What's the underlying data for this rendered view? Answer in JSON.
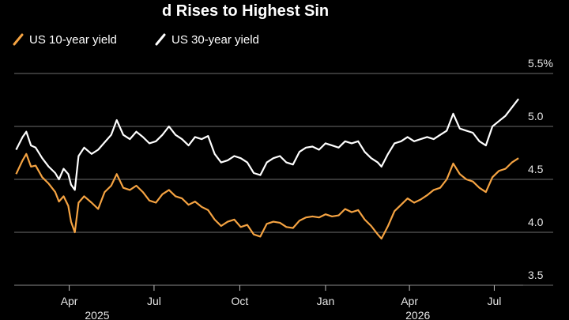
{
  "chart_data": {
    "type": "line",
    "title": "d Rises to Highest Sin",
    "ylim": [
      3.5,
      5.5
    ],
    "y_ticks": [
      "5.5%",
      "5.0",
      "4.5",
      "4.0",
      "3.5"
    ],
    "y_tick_values": [
      5.5,
      5.0,
      4.5,
      4.0,
      3.5
    ],
    "x_range": [
      "2025-02-01",
      "2026-08-01"
    ],
    "x_ticks": [
      {
        "label": "Apr",
        "date": "2025-04-01"
      },
      {
        "label": "Jul",
        "date": "2025-07-01"
      },
      {
        "label": "Oct",
        "date": "2025-10-01"
      },
      {
        "label": "Jan",
        "date": "2026-01-01"
      },
      {
        "label": "Apr",
        "date": "2026-04-01"
      },
      {
        "label": "Jul",
        "date": "2026-07-01"
      }
    ],
    "year_labels": [
      {
        "label": "2025",
        "date": "2025-05-01"
      },
      {
        "label": "2026",
        "date": "2026-04-10"
      }
    ],
    "legend_placement": "top-left",
    "grid": "horizontal",
    "series": [
      {
        "name": "US 10-year yield",
        "color": "#f5a342",
        "points": [
          [
            "2025-02-03",
            4.55
          ],
          [
            "2025-02-10",
            4.68
          ],
          [
            "2025-02-14",
            4.74
          ],
          [
            "2025-02-19",
            4.62
          ],
          [
            "2025-02-24",
            4.63
          ],
          [
            "2025-03-03",
            4.52
          ],
          [
            "2025-03-10",
            4.46
          ],
          [
            "2025-03-17",
            4.38
          ],
          [
            "2025-03-21",
            4.29
          ],
          [
            "2025-03-26",
            4.34
          ],
          [
            "2025-03-31",
            4.25
          ],
          [
            "2025-04-03",
            4.1
          ],
          [
            "2025-04-07",
            4.0
          ],
          [
            "2025-04-11",
            4.28
          ],
          [
            "2025-04-17",
            4.34
          ],
          [
            "2025-04-25",
            4.28
          ],
          [
            "2025-05-02",
            4.22
          ],
          [
            "2025-05-09",
            4.38
          ],
          [
            "2025-05-16",
            4.44
          ],
          [
            "2025-05-22",
            4.55
          ],
          [
            "2025-05-29",
            4.42
          ],
          [
            "2025-06-05",
            4.4
          ],
          [
            "2025-06-12",
            4.44
          ],
          [
            "2025-06-19",
            4.38
          ],
          [
            "2025-06-26",
            4.3
          ],
          [
            "2025-07-03",
            4.28
          ],
          [
            "2025-07-10",
            4.36
          ],
          [
            "2025-07-17",
            4.4
          ],
          [
            "2025-07-24",
            4.34
          ],
          [
            "2025-07-31",
            4.32
          ],
          [
            "2025-08-07",
            4.26
          ],
          [
            "2025-08-14",
            4.29
          ],
          [
            "2025-08-21",
            4.24
          ],
          [
            "2025-08-28",
            4.21
          ],
          [
            "2025-09-04",
            4.12
          ],
          [
            "2025-09-11",
            4.06
          ],
          [
            "2025-09-18",
            4.1
          ],
          [
            "2025-09-25",
            4.12
          ],
          [
            "2025-10-02",
            4.05
          ],
          [
            "2025-10-09",
            4.07
          ],
          [
            "2025-10-16",
            3.98
          ],
          [
            "2025-10-23",
            3.96
          ],
          [
            "2025-10-30",
            4.08
          ],
          [
            "2025-11-06",
            4.1
          ],
          [
            "2025-11-13",
            4.09
          ],
          [
            "2025-11-20",
            4.05
          ],
          [
            "2025-11-27",
            4.04
          ],
          [
            "2025-12-04",
            4.11
          ],
          [
            "2025-12-11",
            4.14
          ],
          [
            "2025-12-18",
            4.15
          ],
          [
            "2025-12-25",
            4.14
          ],
          [
            "2026-01-01",
            4.17
          ],
          [
            "2026-01-08",
            4.15
          ],
          [
            "2026-01-15",
            4.16
          ],
          [
            "2026-01-22",
            4.22
          ],
          [
            "2026-01-29",
            4.19
          ],
          [
            "2026-02-05",
            4.21
          ],
          [
            "2026-02-12",
            4.12
          ],
          [
            "2026-02-19",
            4.06
          ],
          [
            "2026-02-26",
            3.98
          ],
          [
            "2026-03-02",
            3.94
          ],
          [
            "2026-03-09",
            4.06
          ],
          [
            "2026-03-16",
            4.2
          ],
          [
            "2026-03-23",
            4.26
          ],
          [
            "2026-03-30",
            4.32
          ],
          [
            "2026-04-06",
            4.28
          ],
          [
            "2026-04-13",
            4.31
          ],
          [
            "2026-04-20",
            4.35
          ],
          [
            "2026-04-27",
            4.4
          ],
          [
            "2026-05-04",
            4.42
          ],
          [
            "2026-05-11",
            4.5
          ],
          [
            "2026-05-18",
            4.65
          ],
          [
            "2026-05-25",
            4.55
          ],
          [
            "2026-06-01",
            4.5
          ],
          [
            "2026-06-08",
            4.48
          ],
          [
            "2026-06-15",
            4.42
          ],
          [
            "2026-06-22",
            4.38
          ],
          [
            "2026-06-29",
            4.52
          ],
          [
            "2026-07-06",
            4.58
          ],
          [
            "2026-07-13",
            4.6
          ],
          [
            "2026-07-20",
            4.66
          ],
          [
            "2026-07-27",
            4.7
          ]
        ]
      },
      {
        "name": "US 30-year yield",
        "color": "#ffffff",
        "points": [
          [
            "2025-02-03",
            4.78
          ],
          [
            "2025-02-10",
            4.9
          ],
          [
            "2025-02-14",
            4.95
          ],
          [
            "2025-02-19",
            4.82
          ],
          [
            "2025-02-24",
            4.8
          ],
          [
            "2025-03-03",
            4.7
          ],
          [
            "2025-03-10",
            4.62
          ],
          [
            "2025-03-17",
            4.56
          ],
          [
            "2025-03-21",
            4.5
          ],
          [
            "2025-03-26",
            4.6
          ],
          [
            "2025-03-31",
            4.55
          ],
          [
            "2025-04-03",
            4.45
          ],
          [
            "2025-04-07",
            4.4
          ],
          [
            "2025-04-11",
            4.72
          ],
          [
            "2025-04-17",
            4.8
          ],
          [
            "2025-04-25",
            4.74
          ],
          [
            "2025-05-02",
            4.78
          ],
          [
            "2025-05-09",
            4.85
          ],
          [
            "2025-05-16",
            4.92
          ],
          [
            "2025-05-22",
            5.06
          ],
          [
            "2025-05-29",
            4.92
          ],
          [
            "2025-06-05",
            4.88
          ],
          [
            "2025-06-12",
            4.95
          ],
          [
            "2025-06-19",
            4.9
          ],
          [
            "2025-06-26",
            4.84
          ],
          [
            "2025-07-03",
            4.86
          ],
          [
            "2025-07-10",
            4.92
          ],
          [
            "2025-07-17",
            5.0
          ],
          [
            "2025-07-24",
            4.92
          ],
          [
            "2025-07-31",
            4.88
          ],
          [
            "2025-08-07",
            4.82
          ],
          [
            "2025-08-14",
            4.9
          ],
          [
            "2025-08-21",
            4.88
          ],
          [
            "2025-08-28",
            4.91
          ],
          [
            "2025-09-04",
            4.74
          ],
          [
            "2025-09-11",
            4.66
          ],
          [
            "2025-09-18",
            4.68
          ],
          [
            "2025-09-25",
            4.72
          ],
          [
            "2025-10-02",
            4.7
          ],
          [
            "2025-10-09",
            4.66
          ],
          [
            "2025-10-16",
            4.56
          ],
          [
            "2025-10-23",
            4.54
          ],
          [
            "2025-10-30",
            4.66
          ],
          [
            "2025-11-06",
            4.7
          ],
          [
            "2025-11-13",
            4.72
          ],
          [
            "2025-11-20",
            4.66
          ],
          [
            "2025-11-27",
            4.64
          ],
          [
            "2025-12-04",
            4.76
          ],
          [
            "2025-12-11",
            4.8
          ],
          [
            "2025-12-18",
            4.81
          ],
          [
            "2025-12-25",
            4.78
          ],
          [
            "2026-01-01",
            4.84
          ],
          [
            "2026-01-08",
            4.82
          ],
          [
            "2026-01-15",
            4.8
          ],
          [
            "2026-01-22",
            4.86
          ],
          [
            "2026-01-29",
            4.84
          ],
          [
            "2026-02-05",
            4.86
          ],
          [
            "2026-02-12",
            4.76
          ],
          [
            "2026-02-19",
            4.7
          ],
          [
            "2026-02-26",
            4.66
          ],
          [
            "2026-03-02",
            4.62
          ],
          [
            "2026-03-09",
            4.74
          ],
          [
            "2026-03-16",
            4.84
          ],
          [
            "2026-03-23",
            4.86
          ],
          [
            "2026-03-30",
            4.9
          ],
          [
            "2026-04-06",
            4.86
          ],
          [
            "2026-04-13",
            4.88
          ],
          [
            "2026-04-20",
            4.9
          ],
          [
            "2026-04-27",
            4.88
          ],
          [
            "2026-05-04",
            4.92
          ],
          [
            "2026-05-11",
            4.96
          ],
          [
            "2026-05-18",
            5.12
          ],
          [
            "2026-05-25",
            4.98
          ],
          [
            "2026-06-01",
            4.96
          ],
          [
            "2026-06-08",
            4.94
          ],
          [
            "2026-06-15",
            4.86
          ],
          [
            "2026-06-22",
            4.82
          ],
          [
            "2026-06-29",
            5.0
          ],
          [
            "2026-07-06",
            5.05
          ],
          [
            "2026-07-13",
            5.1
          ],
          [
            "2026-07-20",
            5.18
          ],
          [
            "2026-07-27",
            5.26
          ]
        ]
      }
    ]
  }
}
